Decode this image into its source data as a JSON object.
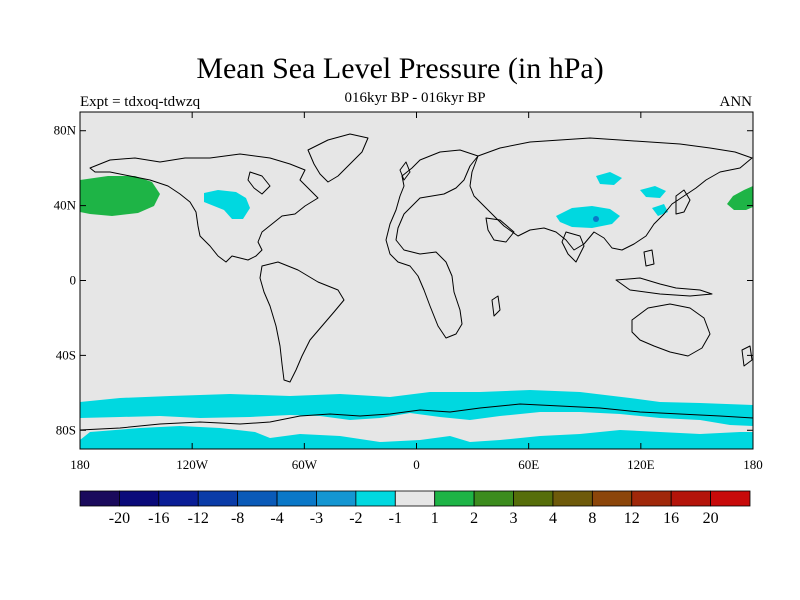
{
  "header": {
    "title": "Mean Sea Level Pressure (in hPa)",
    "subtitle": "016kyr BP - 016kyr BP",
    "left_label": "Expt = tdxoq-tdwzq",
    "right_label": "ANN"
  },
  "map": {
    "projection": "cylindrical-equidistant",
    "lon_range": [
      -180,
      180
    ],
    "lat_range": [
      -90,
      90
    ],
    "background_color": "#e6e6e6",
    "coastline_color": "#000000",
    "lat_ticks": [
      {
        "value": 80,
        "label": "80N"
      },
      {
        "value": 40,
        "label": "40N"
      },
      {
        "value": 0,
        "label": "0"
      },
      {
        "value": -40,
        "label": "40S"
      },
      {
        "value": -80,
        "label": "80S"
      }
    ],
    "lon_ticks": [
      {
        "value": -180,
        "label": "180"
      },
      {
        "value": -120,
        "label": "120W"
      },
      {
        "value": -60,
        "label": "60W"
      },
      {
        "value": 0,
        "label": "0"
      },
      {
        "value": 60,
        "label": "60E"
      },
      {
        "value": 120,
        "label": "120E"
      },
      {
        "value": 180,
        "label": "180"
      }
    ]
  },
  "colorbar": {
    "colors": [
      "#1a0a5c",
      "#0a0a7a",
      "#0a1e96",
      "#0a3ca8",
      "#0a5ab8",
      "#0a78c8",
      "#1496d2",
      "#00d8e0",
      "#e6e6e6",
      "#1eb446",
      "#3c8c1e",
      "#566e0a",
      "#6e5a0a",
      "#8c460a",
      "#a0280a",
      "#b4140a",
      "#c80a0a"
    ],
    "labels": [
      "-20",
      "-16",
      "-12",
      "-8",
      "-4",
      "-3",
      "-2",
      "-1",
      "1",
      "2",
      "3",
      "4",
      "8",
      "12",
      "16",
      "20"
    ]
  }
}
